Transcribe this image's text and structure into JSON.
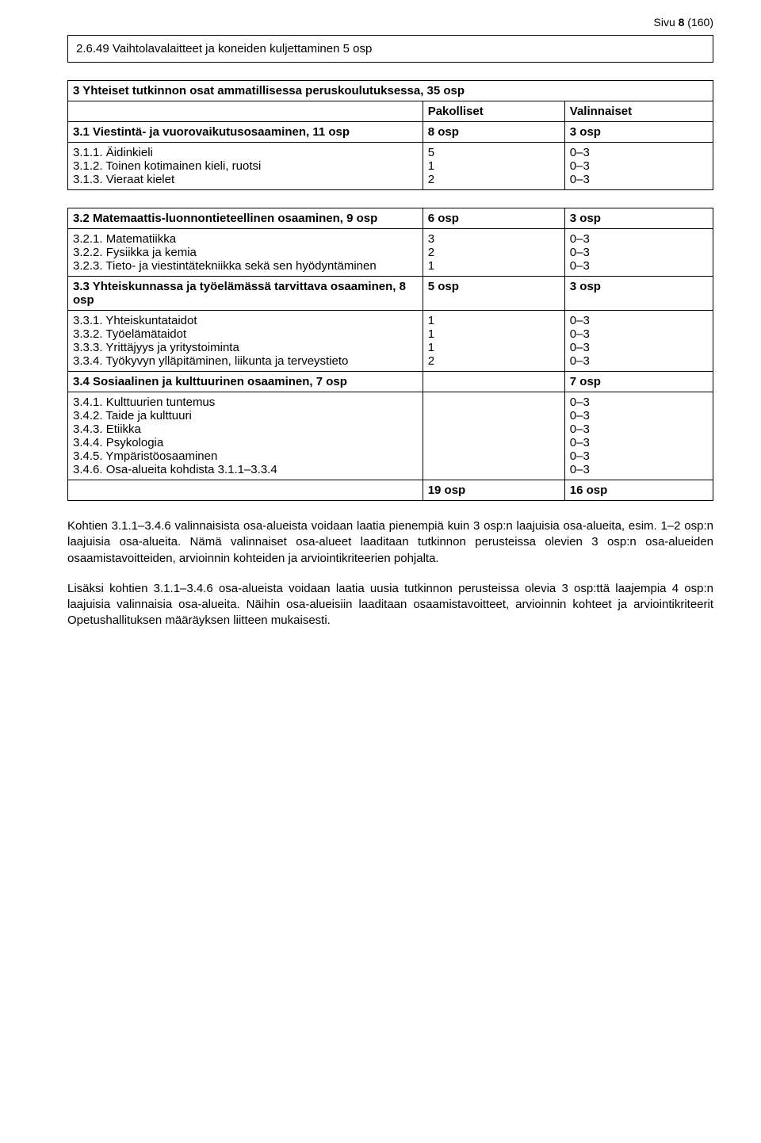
{
  "page": {
    "prefix": "Sivu ",
    "num": "8",
    "total": " (160)"
  },
  "box_line": "2.6.49 Vaihtolavalaitteet ja koneiden kuljettaminen 5 osp",
  "table1_title": "3 Yhteiset tutkinnon osat ammatillisessa peruskoulutuksessa, 35 osp",
  "t1_h_p": "Pakolliset",
  "t1_h_v": "Valinnaiset",
  "t1_r31_label": "3.1 Viestintä- ja vuorovaikutusosaaminen, 11 osp",
  "t1_r31_a": "8 osp",
  "t1_r31_b": "3 osp",
  "t1_311": "3.1.1. Äidinkieli",
  "t1_312": "3.1.2. Toinen kotimainen kieli, ruotsi",
  "t1_313": "3.1.3. Vieraat kielet",
  "t1_c2_512": "5\n1\n2",
  "t1_c3_03x3": "0–3\n0–3\n0–3",
  "t2_r32_label": "3.2 Matemaattis-luonnontieteellinen osaaminen, 9 osp",
  "t2_r32_a": "6 osp",
  "t2_r32_b": "3 osp",
  "t2_321": "3.2.1. Matematiikka",
  "t2_322": "3.2.2. Fysiikka ja kemia",
  "t2_323": "3.2.3. Tieto- ja viestintätekniikka sekä sen hyödyntäminen",
  "t2_c2_321": "3\n2\n1",
  "t2_c3_03x3": "0–3\n0–3\n0–3",
  "t2_r33_label": "3.3 Yhteiskunnassa ja työelämässä tarvittava osaaminen, 8 osp",
  "t2_r33_a": "5 osp",
  "t2_r33_b": "3 osp",
  "t2_331": "3.3.1. Yhteiskuntataidot",
  "t2_332": "3.3.2. Työelämätaidot",
  "t2_333": "3.3.3. Yrittäjyys ja yritystoiminta",
  "t2_334": "3.3.4. Työkyvyn ylläpitäminen, liikunta ja terveystieto",
  "t2_c2_1112": "1\n1\n1\n2",
  "t2_c3_03x4": "0–3\n0–3\n0–3\n0–3",
  "t2_r34_label": "3.4 Sosiaalinen ja kulttuurinen osaaminen, 7 osp",
  "t2_r34_a": "",
  "t2_r34_b": "7 osp",
  "t2_341": "3.4.1. Kulttuurien tuntemus",
  "t2_342": "3.4.2. Taide ja kulttuuri",
  "t2_343": "3.4.3. Etiikka",
  "t2_344": "3.4.4. Psykologia",
  "t2_345": "3.4.5. Ympäristöosaaminen",
  "t2_346": "3.4.6. Osa-alueita kohdista 3.1.1–3.3.4",
  "t2_c3_03x6": "0–3\n0–3\n0–3\n0–3\n0–3\n0–3",
  "t2_total_a": "19 osp",
  "t2_total_b": "16 osp",
  "para1": "Kohtien 3.1.1–3.4.6 valinnaisista osa-alueista voidaan laatia pienempiä kuin 3 osp:n laajuisia osa-alueita, esim. 1–2 osp:n laajuisia osa-alueita. Nämä valinnaiset osa-alueet laaditaan tutkinnon perusteissa olevien 3 osp:n osa-alueiden osaamistavoitteiden, arvioinnin kohteiden ja arviointikriteerien pohjalta.",
  "para2": "Lisäksi kohtien 3.1.1–3.4.6 osa-alueista voidaan laatia uusia tutkinnon perusteissa olevia 3 osp:ttä laajempia 4 osp:n laajuisia valinnaisia osa-alueita. Näihin osa-alueisiin laaditaan osaamistavoitteet, arvioinnin kohteet ja arviointikriteerit Opetushallituksen määräyksen liitteen mukaisesti."
}
